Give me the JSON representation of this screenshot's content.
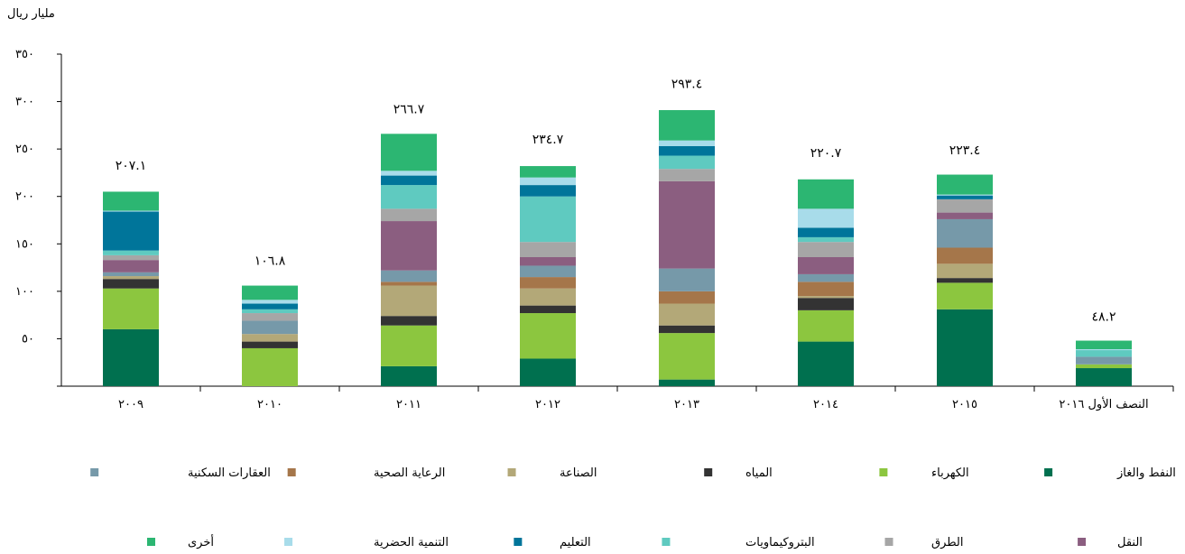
{
  "chart_data": {
    "type": "bar",
    "stacked": true,
    "ylabel": "مليار ريال",
    "ylim": [
      0,
      350
    ],
    "yticks": [
      0,
      50,
      100,
      150,
      200,
      250,
      300,
      350
    ],
    "ytick_labels": [
      "",
      "٥٠",
      "١٠٠",
      "١٥٠",
      "٢٠٠",
      "٢٥٠",
      "٣٠٠",
      "٣٥٠"
    ],
    "categories": [
      "٢٠٠٩",
      "٢٠١٠",
      "٢٠١١",
      "٢٠١٢",
      "٢٠١٣",
      "٢٠١٤",
      "٢٠١٥",
      "النصف الأول ٢٠١٦"
    ],
    "totals": [
      "٢٠٧.١",
      "١٠٦.٨",
      "٢٦٦.٧",
      "٢٣٤.٧",
      "٢٩٣.٤",
      "٢٢٠.٧",
      "٢٢٣.٤",
      "٤٨.٢"
    ],
    "totals_plotted": [
      207.1,
      106.8,
      266.7,
      234.7,
      293.4,
      220.7,
      223.4,
      48.2
    ],
    "grid": false,
    "legend_position": "bottom",
    "series": [
      {
        "name": "النفط والغاز",
        "color": "#00704f",
        "values": [
          60,
          0,
          21,
          29,
          7,
          47,
          81,
          19
        ]
      },
      {
        "name": "الكهرباء",
        "color": "#8cc63f",
        "values": [
          43,
          40,
          43,
          48,
          49,
          33,
          28,
          4
        ]
      },
      {
        "name": "المياه",
        "color": "#333333",
        "values": [
          10,
          7,
          10,
          8,
          8,
          13,
          5,
          0
        ]
      },
      {
        "name": "الصناعة",
        "color": "#b3a878",
        "values": [
          3,
          8,
          32,
          18,
          23,
          2,
          15,
          0
        ]
      },
      {
        "name": "الرعاية الصحية",
        "color": "#a5764a",
        "values": [
          0,
          0,
          4,
          12,
          13,
          15,
          17,
          0
        ]
      },
      {
        "name": "العقارات السكنية",
        "color": "#7699a9",
        "values": [
          4,
          14,
          12,
          12,
          24,
          8,
          30,
          8
        ]
      },
      {
        "name": "النقل",
        "color": "#8b5e80",
        "values": [
          13,
          0,
          52,
          9,
          92,
          18,
          7,
          0
        ]
      },
      {
        "name": "الطرق",
        "color": "#a6a6a6",
        "values": [
          5,
          8,
          13,
          16,
          13,
          16,
          14,
          0
        ]
      },
      {
        "name": "البتروكيماويات",
        "color": "#5fcac0",
        "values": [
          5,
          4,
          25,
          48,
          14,
          5,
          0,
          7
        ]
      },
      {
        "name": "التعليم",
        "color": "#00759a",
        "values": [
          41,
          6,
          10,
          12,
          10,
          10,
          4,
          0
        ]
      },
      {
        "name": "التنمية الحضرية",
        "color": "#a8dcea",
        "values": [
          1,
          4,
          5,
          8,
          6,
          20,
          1,
          1
        ]
      },
      {
        "name": "أخرى",
        "color": "#2cb672",
        "values": [
          20,
          15,
          39,
          12,
          32,
          31,
          21,
          9
        ]
      }
    ]
  }
}
